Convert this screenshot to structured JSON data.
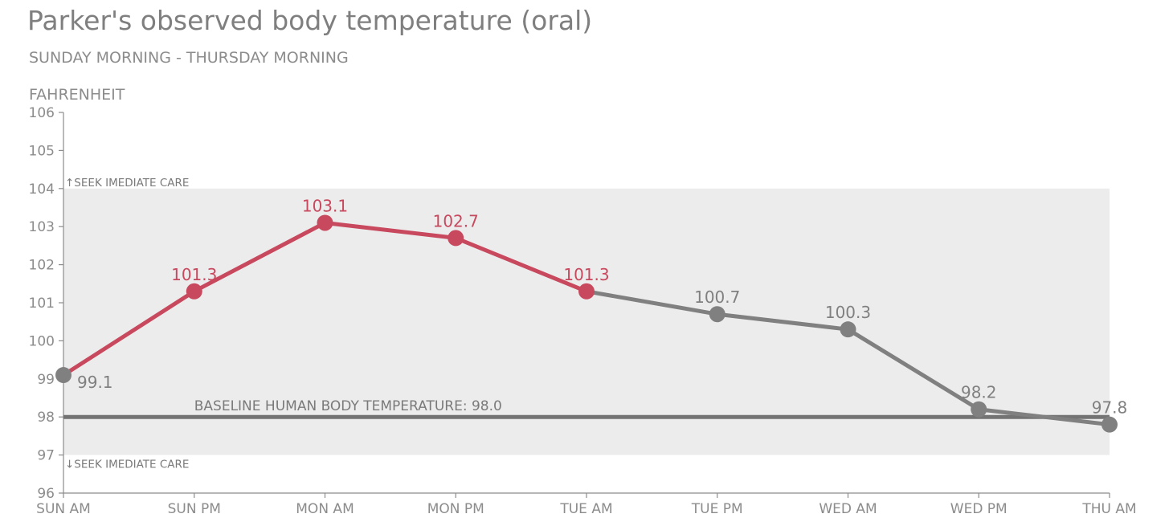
{
  "chart_data": {
    "type": "line",
    "title": "Parker's observed body temperature (oral)",
    "subtitle": "SUNDAY MORNING - THURSDAY MORNING",
    "ylabel": "FAHRENHEIT",
    "xlabel": "",
    "categories": [
      "SUN AM",
      "SUN PM",
      "MON AM",
      "MON PM",
      "TUE AM",
      "TUE PM",
      "WED AM",
      "WED PM",
      "THU AM"
    ],
    "series": [
      {
        "name": "Temperature",
        "values": [
          99.1,
          101.3,
          103.1,
          102.7,
          101.3,
          100.7,
          100.3,
          98.2,
          97.8
        ]
      }
    ],
    "value_labels": [
      "99.1",
      "101.3",
      "103.1",
      "102.7",
      "101.3",
      "100.7",
      "100.3",
      "98.2",
      "97.8"
    ],
    "highlight_range_index": [
      0,
      4
    ],
    "ylim": [
      96,
      106
    ],
    "yticks": [
      "96",
      "97",
      "98",
      "99",
      "100",
      "101",
      "102",
      "103",
      "104",
      "105",
      "106"
    ],
    "normal_band": {
      "low": 97,
      "high": 104
    },
    "band_labels": {
      "upper": "↑SEEK IMEDIATE CARE",
      "lower": "↓SEEK IMEDIATE CARE"
    },
    "baseline": {
      "value": 98.0,
      "label": "BASELINE HUMAN BODY TEMPERATURE: 98.0"
    },
    "grid": false,
    "colors": {
      "highlight": "#c8485e",
      "normal": "#808080",
      "baseline": "#737373",
      "band": "#ececec",
      "axis": "#8c8c8c",
      "tick_text": "#8c8c8c"
    }
  }
}
